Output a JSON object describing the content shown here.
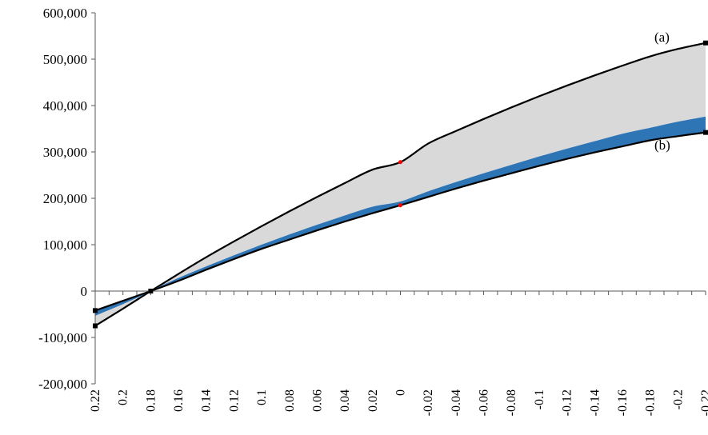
{
  "chart_data": {
    "type": "area",
    "title": "",
    "xlabel": "",
    "ylabel": "",
    "x": [
      0.22,
      0.2,
      0.18,
      0.16,
      0.14,
      0.12,
      0.1,
      0.08,
      0.06,
      0.04,
      0.02,
      0,
      -0.02,
      -0.04,
      -0.06,
      -0.08,
      -0.1,
      -0.12,
      -0.14,
      -0.16,
      -0.18,
      -0.2,
      -0.22
    ],
    "x_tick_labels": [
      "0.22",
      "0.2",
      "0.18",
      "0.16",
      "0.14",
      "0.12",
      "0.1",
      "0.08",
      "0.06",
      "0.04",
      "0.02",
      "0",
      "-0.02",
      "-0.04",
      "-0.06",
      "-0.08",
      "-0.1",
      "-0.12",
      "-0.14",
      "-0.16",
      "-0.18",
      "-0.2",
      "-0.22"
    ],
    "y_tick_labels": [
      "600,000",
      "500,000",
      "400,000",
      "300,000",
      "200,000",
      "100,000",
      "0",
      "-100,000",
      "-200,000"
    ],
    "y_ticks": [
      600000,
      500000,
      400000,
      300000,
      200000,
      100000,
      0,
      -100000,
      -200000
    ],
    "ylim": [
      -200000,
      600000
    ],
    "grid": false,
    "series": [
      {
        "name": "(a)",
        "color": "#000000",
        "values": [
          -75000,
          -38000,
          0,
          37000,
          73000,
          107000,
          140000,
          172000,
          203000,
          233000,
          262000,
          278000,
          318000,
          345000,
          371000,
          396000,
          420000,
          443000,
          465000,
          486000,
          506000,
          522000,
          535000
        ]
      },
      {
        "name": "",
        "color": "#2e75b6",
        "values": [
          -52000,
          -27000,
          0,
          27000,
          52000,
          76000,
          99000,
          121000,
          142000,
          162000,
          181000,
          192000,
          214000,
          234000,
          253000,
          271000,
          289000,
          306000,
          322000,
          338000,
          351000,
          364000,
          375000
        ]
      },
      {
        "name": "(b)",
        "color": "#000000",
        "values": [
          -42000,
          -21000,
          0,
          22000,
          46000,
          69000,
          91000,
          111000,
          131000,
          150000,
          168000,
          185000,
          203000,
          221000,
          238000,
          254000,
          270000,
          285000,
          299000,
          312000,
          325000,
          334000,
          342000
        ]
      }
    ],
    "fill_between_a_and_blue": "#d9d9d9",
    "fill_between_blue_and_b": "#2e75b6",
    "annotations": [
      "(a)",
      "(b)"
    ],
    "markers": {
      "endpoint_color": "#000000",
      "midpoint_color": "#ff0000"
    }
  }
}
